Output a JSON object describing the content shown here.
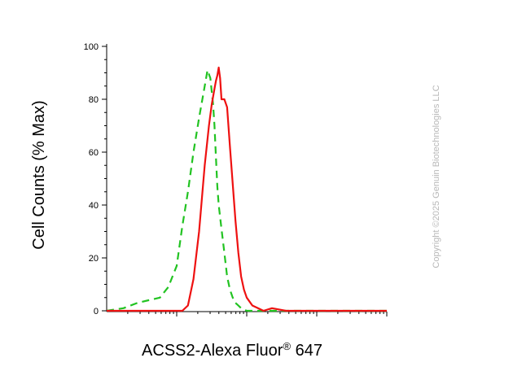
{
  "chart_data": {
    "type": "line",
    "xlabel_main": "ACSS2-Alexa Fluor",
    "xlabel_sup": "®",
    "xlabel_tail": " 647",
    "ylabel": "Cell Counts (% Max)",
    "ylim": [
      0,
      100
    ],
    "y_ticks": [
      "0",
      "20",
      "40",
      "60",
      "80",
      "100"
    ],
    "x_scale": "log",
    "grid": false,
    "series": [
      {
        "color": "#22c322",
        "dash": "dashed",
        "x": [
          0,
          0.06,
          0.11,
          0.15,
          0.19,
          0.22,
          0.25,
          0.27,
          0.29,
          0.31,
          0.33,
          0.35,
          0.36,
          0.37,
          0.38,
          0.385,
          0.39,
          0.395,
          0.4,
          0.41,
          0.42,
          0.43,
          0.44,
          0.45,
          0.46,
          0.47,
          0.48,
          0.5,
          0.53,
          0.56,
          0.6,
          0.68,
          0.85,
          1.0
        ],
        "y": [
          0,
          1,
          3,
          4,
          5,
          9,
          17,
          32,
          45,
          60,
          73,
          85,
          91,
          88,
          78,
          70,
          58,
          47,
          40,
          31,
          22,
          13,
          8,
          5,
          3,
          2,
          1,
          0,
          0,
          0,
          0,
          0,
          0,
          0
        ]
      },
      {
        "color": "#ee1111",
        "dash": "solid",
        "x": [
          0,
          0.2,
          0.25,
          0.27,
          0.29,
          0.31,
          0.33,
          0.35,
          0.365,
          0.375,
          0.385,
          0.39,
          0.395,
          0.4,
          0.405,
          0.41,
          0.42,
          0.43,
          0.44,
          0.45,
          0.46,
          0.47,
          0.48,
          0.49,
          0.5,
          0.52,
          0.54,
          0.56,
          0.59,
          0.64,
          0.8,
          1.0
        ],
        "y": [
          0,
          0,
          0,
          0,
          2,
          12,
          30,
          55,
          70,
          78,
          84,
          87,
          89,
          92,
          88,
          80,
          80,
          77,
          62,
          48,
          34,
          22,
          13,
          8,
          5,
          2,
          1,
          0,
          1,
          0,
          0,
          0
        ]
      }
    ]
  },
  "watermark": "Copyright ©2025 Genuin Biotechnologies LLC"
}
